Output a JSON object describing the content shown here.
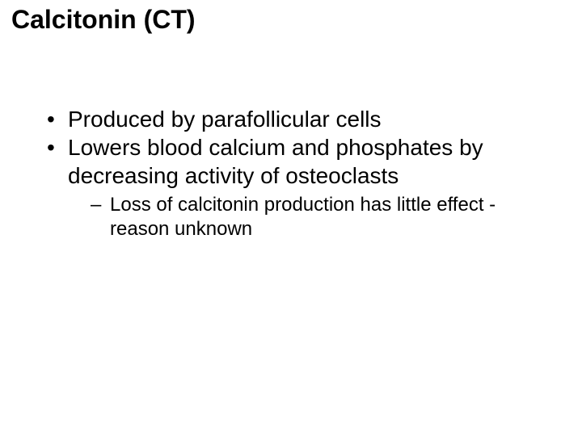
{
  "background_color": "#ffffff",
  "text_color": "#000000",
  "font_family": "Arial",
  "title": {
    "text": "Calcitonin (CT)",
    "fontsize": 32,
    "fontweight": "bold"
  },
  "bullets": {
    "level1_fontsize": 28,
    "level2_fontsize": 24,
    "level1_marker": "•",
    "level2_marker": "–",
    "items": [
      {
        "text": "Produced by parafollicular cells"
      },
      {
        "text": "Lowers blood calcium and phosphates by decreasing activity of osteoclasts",
        "sub": [
          {
            "text": "Loss of calcitonin production has little effect - reason unknown"
          }
        ]
      }
    ]
  }
}
